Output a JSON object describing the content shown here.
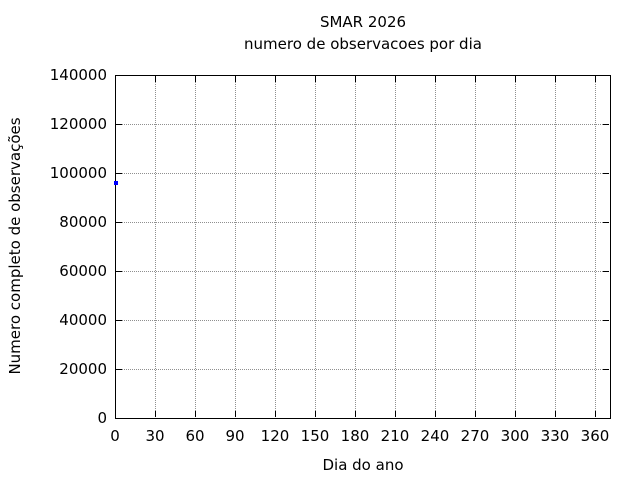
{
  "title": {
    "line1": "SMAR 2026",
    "line2": "numero de observacoes por dia"
  },
  "colors": {
    "background": "#ffffff",
    "axis": "#000000",
    "grid": "#8f8f8f",
    "text": "#000000",
    "point": "#0000ff"
  },
  "chart_data": {
    "type": "scatter",
    "title": "SMAR 2026",
    "subtitle": "numero de observacoes por dia",
    "xlabel": "Dia do ano",
    "ylabel": "Numero completo de observações",
    "xlim": [
      0,
      371
    ],
    "ylim": [
      0,
      140000
    ],
    "x_ticks": [
      0,
      30,
      60,
      90,
      120,
      150,
      180,
      210,
      240,
      270,
      300,
      330,
      360
    ],
    "y_ticks": [
      0,
      20000,
      40000,
      60000,
      80000,
      100000,
      120000,
      140000
    ],
    "grid": true,
    "grid_style": "dotted",
    "legend": "none",
    "marker": "square",
    "marker_color": "#0000ff",
    "points": [
      {
        "x": 1,
        "y": 95900
      }
    ]
  }
}
